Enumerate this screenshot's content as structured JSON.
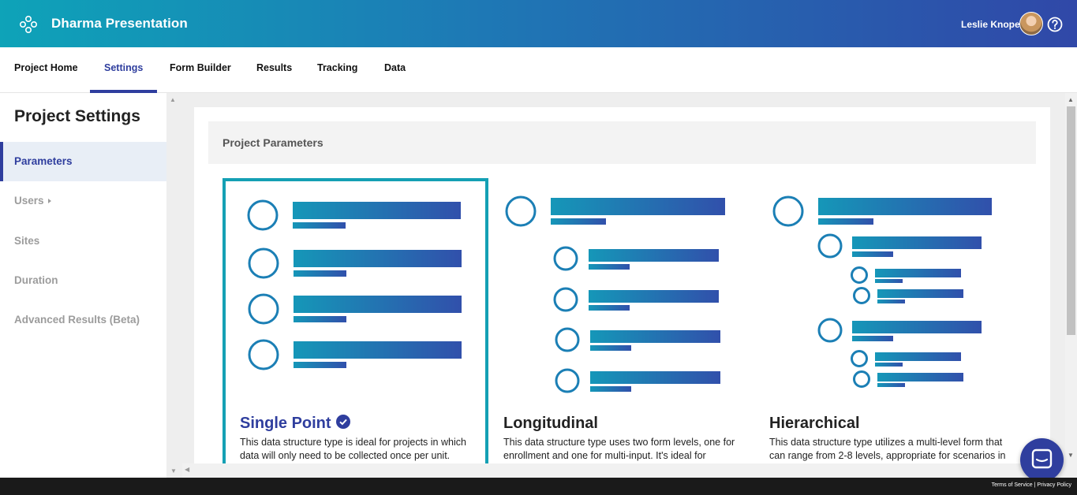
{
  "header": {
    "app_title": "Dharma Presentation",
    "user_name": "Leslie Knope",
    "logo_icon": "dharma-logo-icon",
    "help_icon": "help-circle-icon"
  },
  "nav": {
    "tabs": [
      {
        "label": "Project Home"
      },
      {
        "label": "Settings",
        "active": true
      },
      {
        "label": "Form Builder"
      },
      {
        "label": "Results"
      },
      {
        "label": "Tracking"
      },
      {
        "label": "Data"
      }
    ]
  },
  "sidebar": {
    "title": "Project Settings",
    "items": [
      {
        "label": "Parameters",
        "active": true
      },
      {
        "label": "Users"
      },
      {
        "label": "Sites"
      },
      {
        "label": "Duration"
      },
      {
        "label": "Advanced Results (Beta)"
      }
    ]
  },
  "main": {
    "section_title": "Project Parameters",
    "options": [
      {
        "title": "Single Point",
        "selected": true,
        "description_line1": "This data structure type is ideal for projects in which",
        "description_line2": "data will only need to be collected once per unit."
      },
      {
        "title": "Longitudinal",
        "selected": false,
        "description_line1": "This data structure type uses two form levels, one for",
        "description_line2": "enrollment and one for multi-input. It's ideal for"
      },
      {
        "title": "Hierarchical",
        "selected": false,
        "description_line1": "This data structure type utilizes a multi-level form that",
        "description_line2": "can range from 2-8 levels, appropriate for scenarios in"
      }
    ]
  },
  "footer": {
    "terms": "Terms of Service",
    "separator": "|",
    "privacy": "Privacy Policy"
  },
  "colors": {
    "brand_teal": "#0ea3b8",
    "brand_blue": "#2f3e9e",
    "selected_border": "#14a0b4"
  }
}
